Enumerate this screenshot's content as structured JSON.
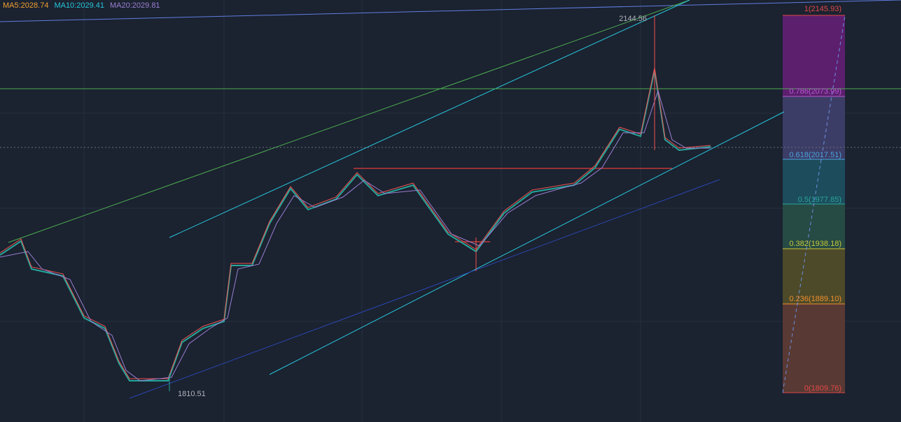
{
  "legend": {
    "items": [
      {
        "label": "MA5:2028.74",
        "color": "#f0a030"
      },
      {
        "label": "MA10:2029.41",
        "color": "#26c6da"
      },
      {
        "label": "MA20:2029.81",
        "color": "#9a7fd1"
      }
    ]
  },
  "price_labels": {
    "high": "2144.56",
    "low": "1810.51"
  },
  "fib_levels": [
    {
      "label": "1(2145.93)",
      "color": "#e04848"
    },
    {
      "label": "0.786(2073.99)",
      "color": "#b45bd0"
    },
    {
      "label": "0.618(2017.51)",
      "color": "#4aa3df"
    },
    {
      "label": "0.5(1977.85)",
      "color": "#26a69a"
    },
    {
      "label": "0.382(1938.18)",
      "color": "#c8c83a"
    },
    {
      "label": "0.236(1889.10)",
      "color": "#f0902a"
    },
    {
      "label": "0(1809.76)",
      "color": "#e04848"
    }
  ]
}
